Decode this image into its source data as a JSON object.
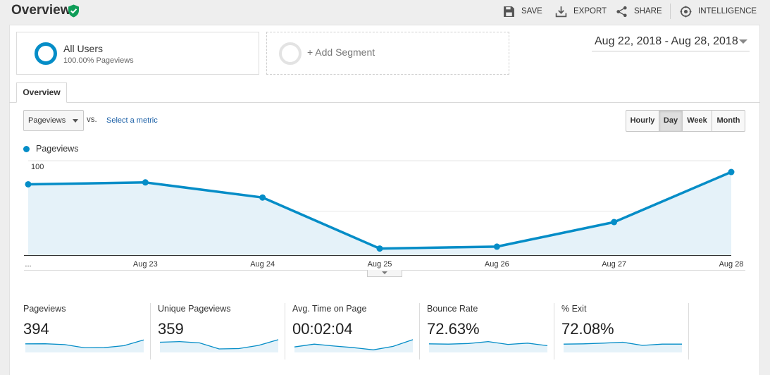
{
  "header": {
    "title": "Overview",
    "actions": {
      "save": "SAVE",
      "export": "EXPORT",
      "share": "SHARE",
      "intelligence": "INTELLIGENCE"
    }
  },
  "segments": {
    "primary": {
      "name": "All Users",
      "detail": "100.00% Pageviews"
    },
    "add_label": "+ Add Segment"
  },
  "date_range": "Aug 22, 2018 - Aug 28, 2018",
  "tabs": [
    "Overview"
  ],
  "controls": {
    "metric": "Pageviews",
    "vs": "vs.",
    "select_metric": "Select a metric",
    "granularity": [
      "Hourly",
      "Day",
      "Week",
      "Month"
    ],
    "active_granularity": "Day"
  },
  "chart_data": {
    "type": "area",
    "x": [
      "Aug 22",
      "Aug 23",
      "Aug 24",
      "Aug 25",
      "Aug 26",
      "Aug 27",
      "Aug 28"
    ],
    "x_tick_labels": [
      "...",
      "Aug 23",
      "Aug 24",
      "Aug 25",
      "Aug 26",
      "Aug 27",
      "Aug 28"
    ],
    "series": [
      {
        "name": "Pageviews",
        "color": "#058dc7",
        "values": [
          81,
          83,
          67,
          13,
          15,
          41,
          94
        ]
      }
    ],
    "y_ticks": [
      50,
      100
    ],
    "ylim": [
      0,
      100
    ],
    "grid": true,
    "legend": "top-left"
  },
  "scorecards": [
    {
      "label": "Pageviews",
      "value": "394",
      "spark": [
        62,
        63,
        56,
        31,
        32,
        48,
        93
      ]
    },
    {
      "label": "Unique Pageviews",
      "value": "359",
      "spark": [
        75,
        80,
        70,
        22,
        25,
        50,
        95
      ]
    },
    {
      "label": "Avg. Time on Page",
      "value": "00:02:04",
      "spark": [
        38,
        60,
        45,
        32,
        15,
        42,
        95
      ]
    },
    {
      "label": "Bounce Rate",
      "value": "72.63%",
      "spark": [
        62,
        60,
        65,
        80,
        58,
        68,
        48
      ]
    },
    {
      "label": "% Exit",
      "value": "72.08%",
      "spark": [
        60,
        62,
        68,
        75,
        50,
        60,
        60
      ]
    }
  ],
  "colors": {
    "accent": "#058dc7",
    "verified": "#0f9d58",
    "area_fill": "#e5f2f9"
  }
}
